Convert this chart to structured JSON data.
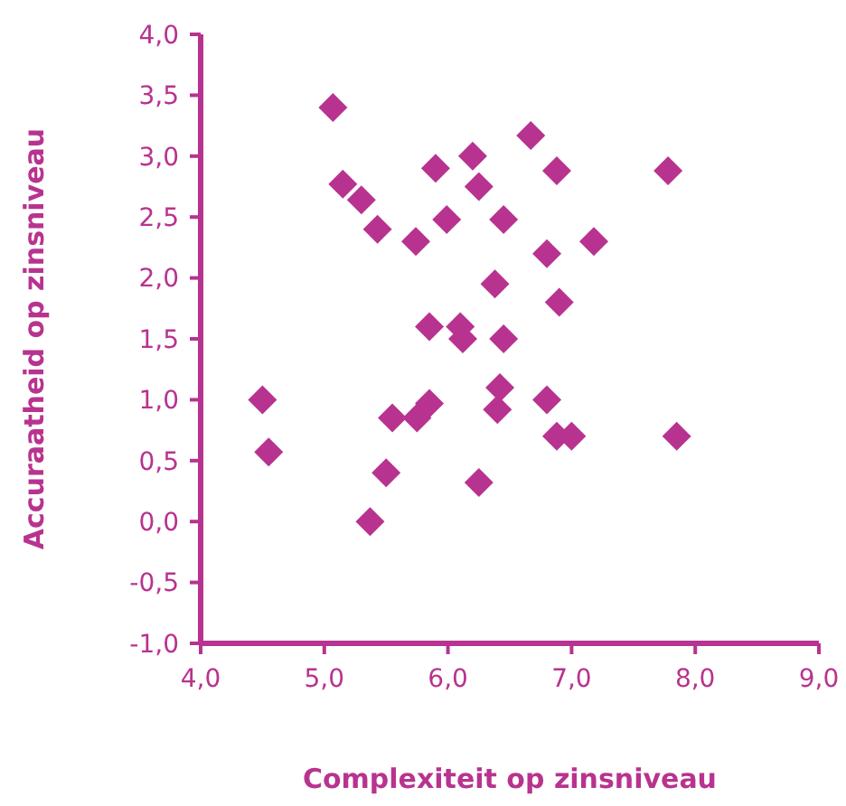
{
  "chart_data": {
    "type": "scatter",
    "xlabel": "Complexiteit op zinsniveau",
    "ylabel": "Accuraatheid op zinsniveau",
    "marker": "diamond",
    "grid": false,
    "xlim": [
      4,
      9
    ],
    "xticks": [
      {
        "value": 4,
        "label": "4,0"
      },
      {
        "value": 5,
        "label": "5,0"
      },
      {
        "value": 6,
        "label": "6,0"
      },
      {
        "value": 7,
        "label": "7,0"
      },
      {
        "value": 8,
        "label": "8,0"
      },
      {
        "value": 9,
        "label": "9,0"
      }
    ],
    "ylim": [
      -1,
      4
    ],
    "yticks": [
      {
        "value": -1,
        "label": "-1,0"
      },
      {
        "value": -0.5,
        "label": "-0,5"
      },
      {
        "value": 0,
        "label": "0,0"
      },
      {
        "value": 0.5,
        "label": "0,5"
      },
      {
        "value": 1,
        "label": "1,0"
      },
      {
        "value": 1.5,
        "label": "1,5"
      },
      {
        "value": 2,
        "label": "2,0"
      },
      {
        "value": 2.5,
        "label": "2,5"
      },
      {
        "value": 3,
        "label": "3,0"
      },
      {
        "value": 3.5,
        "label": "3,5"
      },
      {
        "value": 4,
        "label": "4,0"
      }
    ],
    "series": [
      {
        "color": "#b8338f",
        "x": [
          5.07,
          5.15,
          5.3,
          5.43,
          5.74,
          5.9,
          5.99,
          6.2,
          6.25,
          6.45,
          6.67,
          6.88,
          6.8,
          7.18,
          7.78,
          6.38,
          6.45,
          6.9,
          5.85,
          6.1,
          6.12,
          6.42,
          6.4,
          6.8,
          6.88,
          7.0,
          7.85,
          4.5,
          4.55,
          5.55,
          5.75,
          5.85,
          5.5,
          5.37,
          6.25
        ],
        "values": [
          3.4,
          2.77,
          2.64,
          2.4,
          2.3,
          2.9,
          2.48,
          3.0,
          2.75,
          2.48,
          3.17,
          2.88,
          2.2,
          2.3,
          2.88,
          1.95,
          1.5,
          1.8,
          1.6,
          1.6,
          1.5,
          1.1,
          0.92,
          1.0,
          0.7,
          0.7,
          0.7,
          1.0,
          0.57,
          0.85,
          0.85,
          0.97,
          0.4,
          0.0,
          0.32
        ]
      }
    ]
  }
}
